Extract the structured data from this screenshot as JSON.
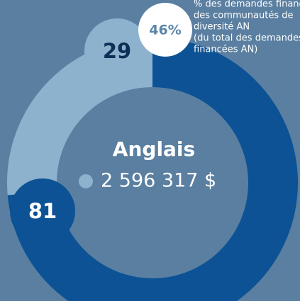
{
  "chart_data": {
    "type": "donut",
    "title": "Anglais",
    "subtitle": "2 596 317 $",
    "values": [
      29,
      81
    ],
    "colors": [
      "#8db2cd",
      "#0c5294"
    ],
    "callout": {
      "values": [
        46
      ],
      "value_labels": [
        "46%"
      ],
      "text": [
        "% des demandes financées",
        "des communautés de",
        "diversité AN",
        "(du total des demandes",
        "financées AN)"
      ]
    }
  }
}
